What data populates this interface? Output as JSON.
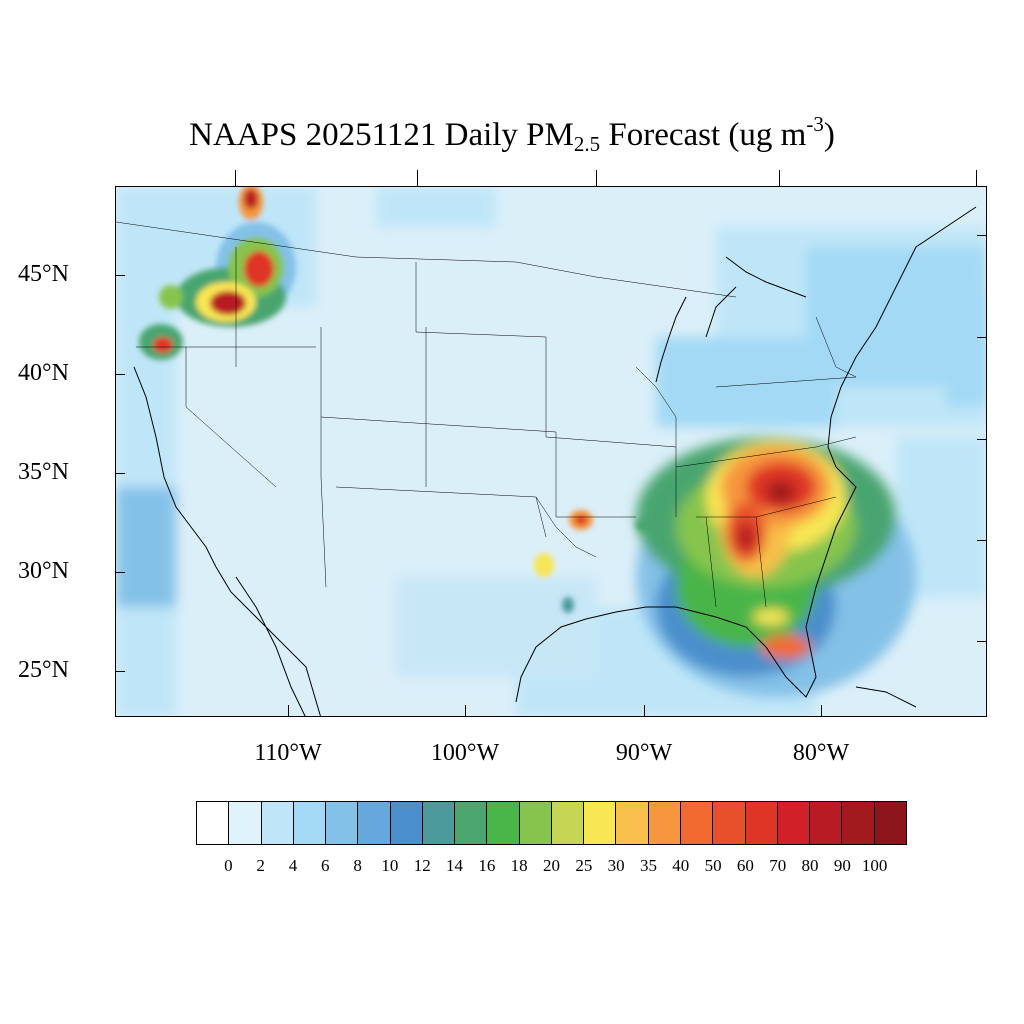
{
  "title": {
    "main": "NAAPS 20251121 Daily PM",
    "subscript": "2.5",
    "suffix": " Forecast (ug m",
    "superscript": "-3",
    "close": ")"
  },
  "lat_labels": [
    "45°N",
    "40°N",
    "35°N",
    "30°N",
    "25°N"
  ],
  "lon_labels": [
    "110°W",
    "100°W",
    "90°W",
    "80°W"
  ],
  "colorbar": {
    "labels": [
      "0",
      "2",
      "4",
      "6",
      "8",
      "10",
      "12",
      "14",
      "16",
      "18",
      "20",
      "25",
      "30",
      "35",
      "40",
      "50",
      "60",
      "70",
      "80",
      "90",
      "100"
    ],
    "colors": [
      "#ffffff",
      "#dff3fb",
      "#bfe6f8",
      "#a3d9f5",
      "#84c1e8",
      "#66a8db",
      "#4b8fcc",
      "#4c9a9c",
      "#4aa56f",
      "#4ab548",
      "#86c44d",
      "#c4d654",
      "#f8e655",
      "#f8c04a",
      "#f6963e",
      "#f16a30",
      "#e8502b",
      "#df3526",
      "#d12028",
      "#b81b24",
      "#a31a1e",
      "#8c161a"
    ]
  },
  "colors": {
    "background": "#dbeff9",
    "light": "#c7e7f7",
    "mid_blue": "#84c1e8",
    "dark_blue": "#66a8db",
    "teal": "#4c9a9c",
    "green": "#4ab548",
    "light_green": "#86c44d",
    "yellow": "#f8e655",
    "orange": "#f6963e",
    "red": "#df3526",
    "dark_red": "#a31a1e"
  }
}
